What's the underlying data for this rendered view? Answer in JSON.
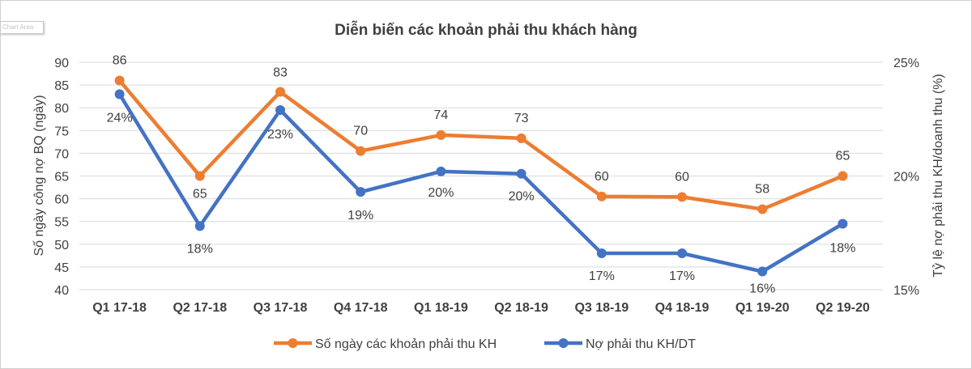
{
  "chart_area_label": "Chart Area",
  "chart_data": {
    "type": "line",
    "title": "Diễn biến các khoản phải thu khách hàng",
    "categories": [
      "Q1 17-18",
      "Q2 17-18",
      "Q3 17-18",
      "Q4 17-18",
      "Q1 18-19",
      "Q2 18-19",
      "Q3 18-19",
      "Q4 18-19",
      "Q1 19-20",
      "Q2 19-20"
    ],
    "ylabel": "Số ngày công nợ BQ (ngày)",
    "y2label": "Tỷ lệ nợ phải thu KH/doanh thu (%)",
    "ylim": [
      40,
      90
    ],
    "y_ticks": [
      "40",
      "45",
      "50",
      "55",
      "60",
      "65",
      "70",
      "75",
      "80",
      "85",
      "90"
    ],
    "y2lim": [
      0.15,
      0.25
    ],
    "y2_ticks": [
      "15%",
      "20%",
      "25%"
    ],
    "grid": true,
    "legend_position": "bottom",
    "series": [
      {
        "name": "Số ngày các khoản phải thu KH",
        "axis": "left",
        "color": "#ed7d31",
        "values": [
          86,
          65,
          83.5,
          70.5,
          74,
          73.3,
          60.5,
          60.4,
          57.7,
          65
        ],
        "labels": [
          "86",
          "65",
          "83",
          "70",
          "74",
          "73",
          "60",
          "60",
          "58",
          "65"
        ]
      },
      {
        "name": "Nợ phải thu KH/DT",
        "axis": "right",
        "color": "#4472c4",
        "values": [
          0.236,
          0.178,
          0.229,
          0.193,
          0.202,
          0.201,
          0.166,
          0.166,
          0.158,
          0.179
        ],
        "labels": [
          "24%",
          "18%",
          "23%",
          "19%",
          "20%",
          "20%",
          "17%",
          "17%",
          "16%",
          "18%"
        ]
      }
    ]
  }
}
